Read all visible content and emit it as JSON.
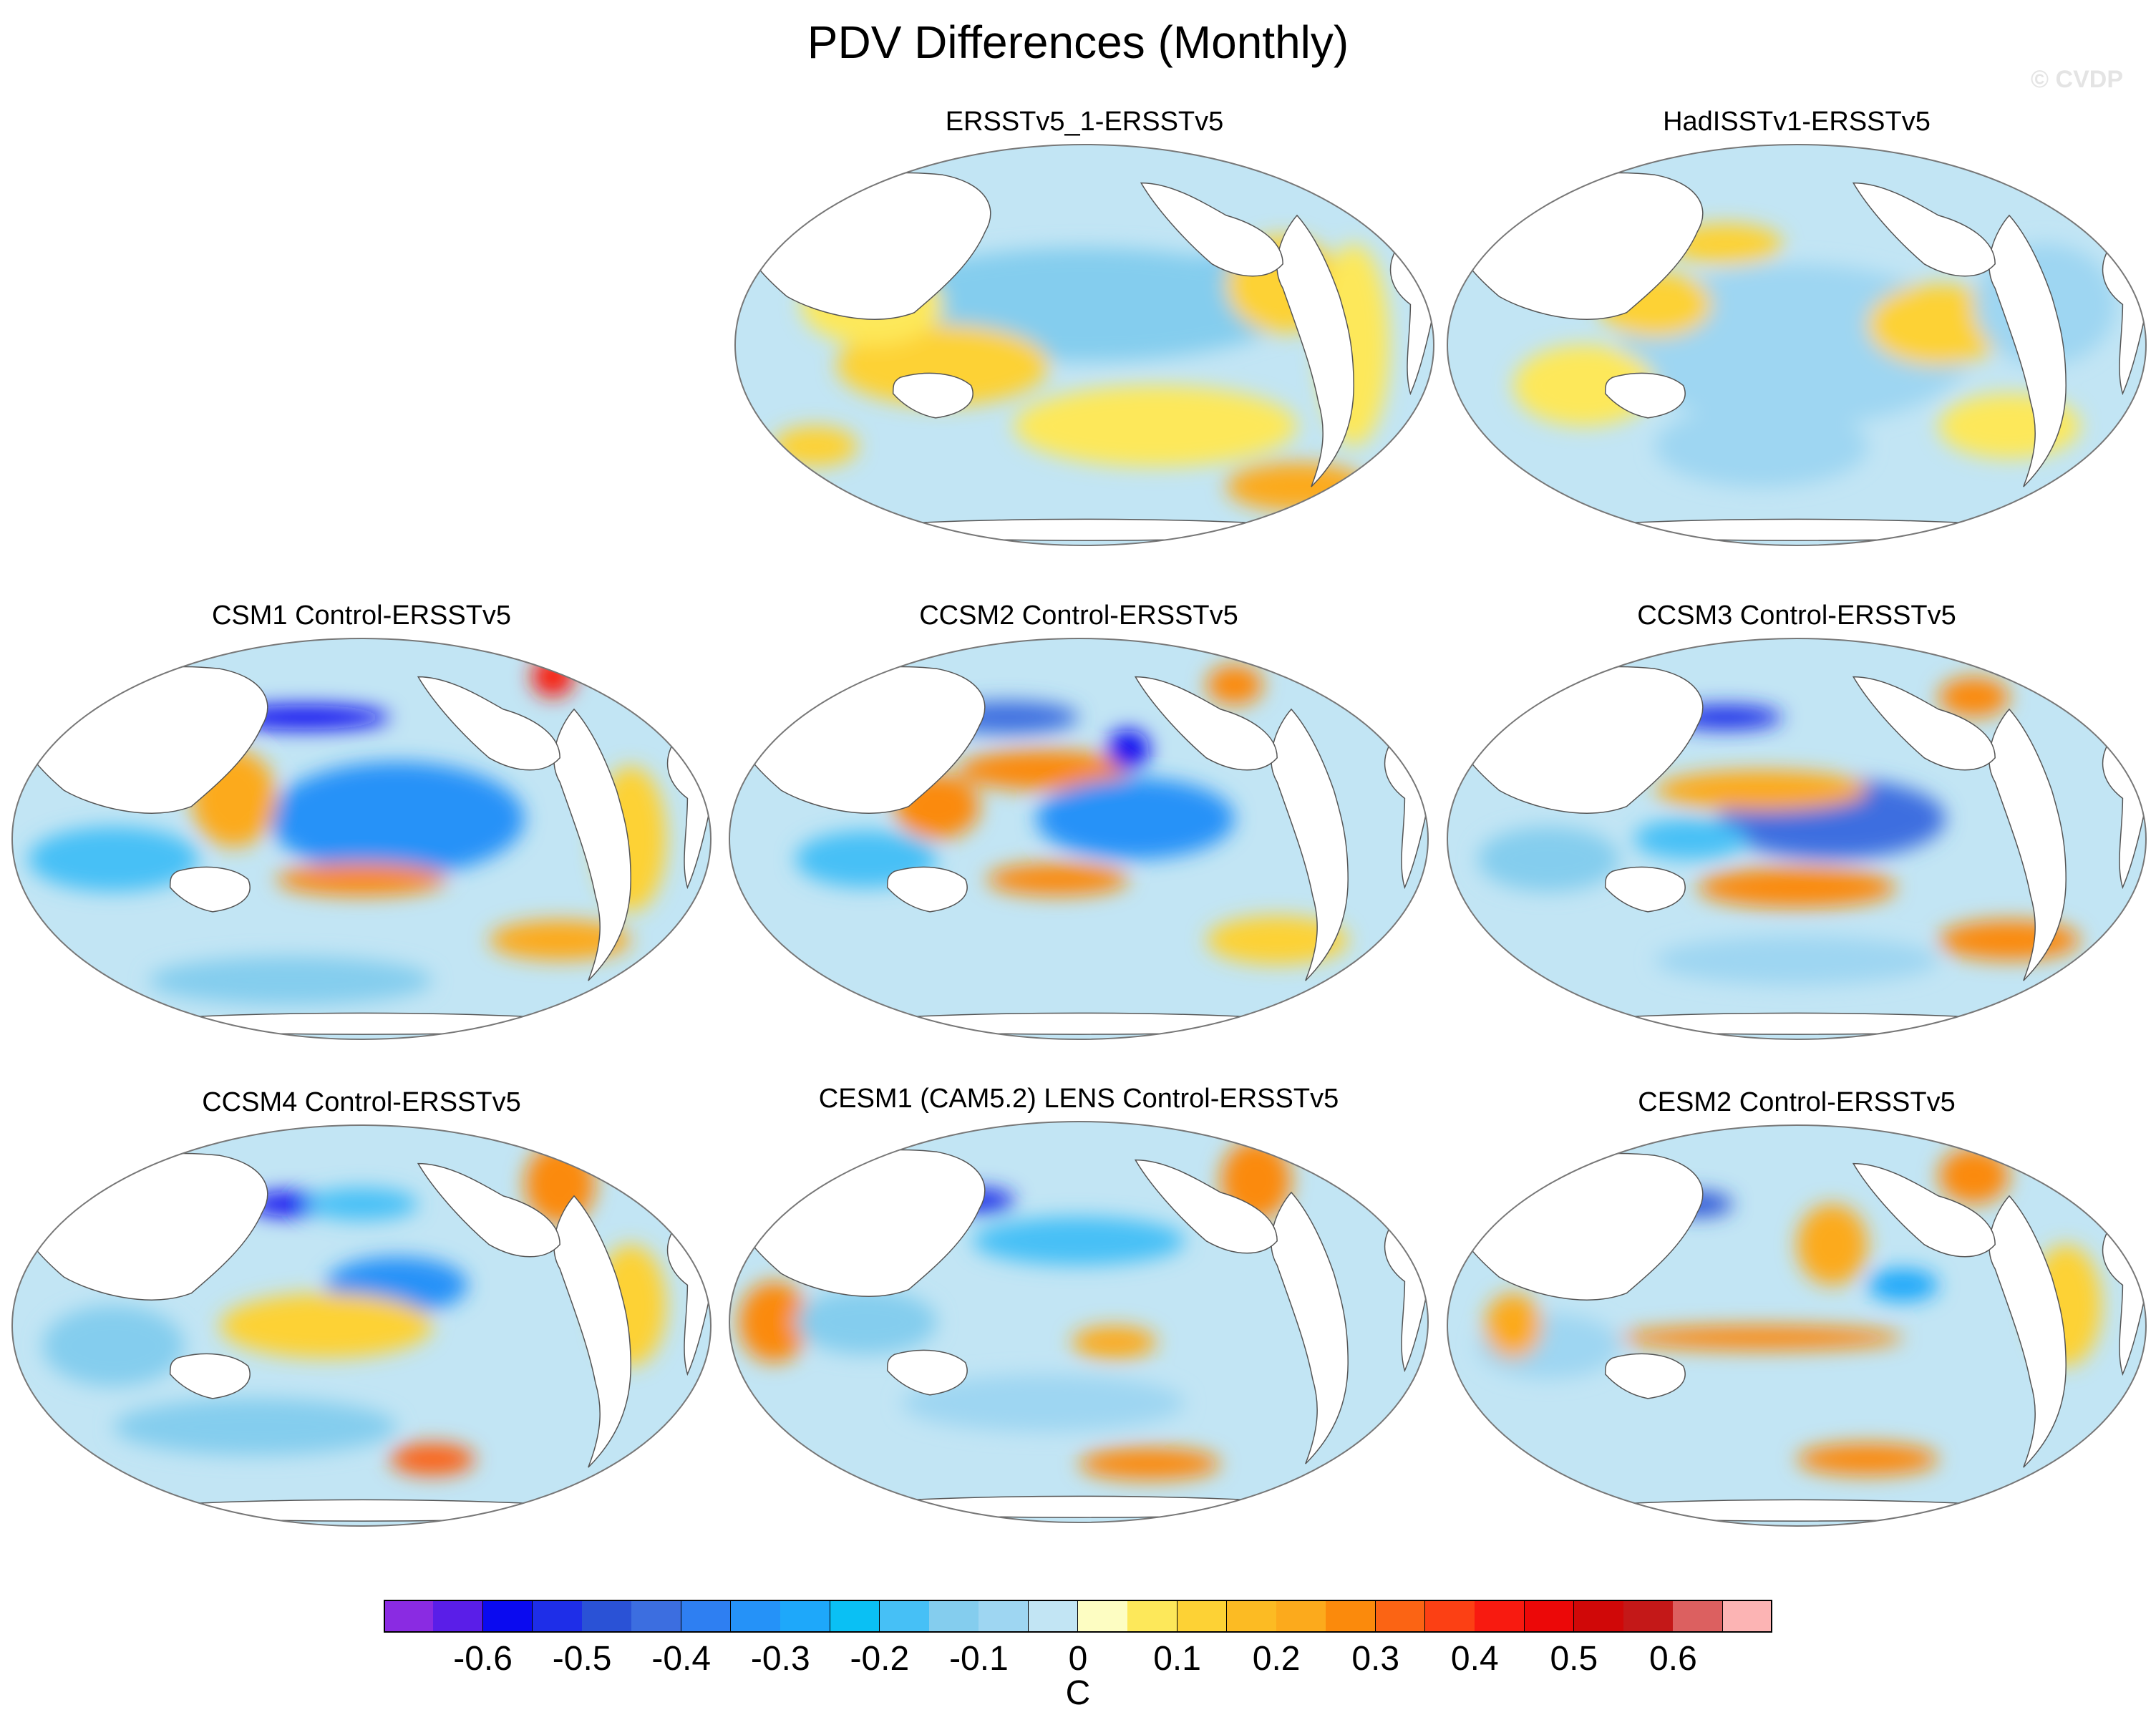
{
  "title": "PDV Differences (Monthly)",
  "watermark": "© CVDP",
  "panels": [
    {
      "id": "ersst1",
      "title": "ERSSTv5_1-ERSSTv5",
      "blobs": [
        [
          0.62,
          0.33,
          0.2,
          0.05,
          -0.3
        ],
        [
          0.5,
          0.4,
          0.3,
          0.14,
          -0.15
        ],
        [
          0.78,
          0.35,
          0.08,
          0.12,
          0.15
        ],
        [
          0.3,
          0.55,
          0.15,
          0.1,
          0.1
        ],
        [
          0.8,
          0.85,
          0.1,
          0.06,
          0.2
        ],
        [
          0.12,
          0.75,
          0.06,
          0.05,
          0.15
        ],
        [
          0.6,
          0.7,
          0.2,
          0.1,
          0.05
        ],
        [
          0.2,
          0.4,
          0.1,
          0.1,
          0.08
        ],
        [
          0.88,
          0.5,
          0.05,
          0.25,
          0.08
        ]
      ]
    },
    {
      "id": "hadisst",
      "title": "HadISSTv1-ERSSTv5",
      "blobs": [
        [
          0.4,
          0.25,
          0.08,
          0.05,
          0.15
        ],
        [
          0.5,
          0.5,
          0.25,
          0.2,
          -0.1
        ],
        [
          0.7,
          0.45,
          0.1,
          0.1,
          0.1
        ],
        [
          0.2,
          0.6,
          0.1,
          0.1,
          0.08
        ],
        [
          0.85,
          0.4,
          0.1,
          0.15,
          -0.08
        ],
        [
          0.45,
          0.75,
          0.15,
          0.1,
          -0.1
        ],
        [
          0.3,
          0.4,
          0.08,
          0.08,
          0.1
        ],
        [
          0.8,
          0.7,
          0.1,
          0.08,
          0.08
        ]
      ]
    },
    {
      "id": "csm1",
      "title": "CSM1 Control-ERSSTv5",
      "blobs": [
        [
          0.42,
          0.2,
          0.12,
          0.03,
          -0.6
        ],
        [
          0.55,
          0.45,
          0.18,
          0.14,
          -0.35
        ],
        [
          0.32,
          0.4,
          0.06,
          0.12,
          0.2
        ],
        [
          0.5,
          0.6,
          0.12,
          0.04,
          0.3
        ],
        [
          0.78,
          0.75,
          0.1,
          0.05,
          0.2
        ],
        [
          0.77,
          0.1,
          0.03,
          0.05,
          0.4
        ],
        [
          0.15,
          0.55,
          0.12,
          0.08,
          -0.2
        ],
        [
          0.4,
          0.85,
          0.2,
          0.06,
          -0.15
        ],
        [
          0.88,
          0.5,
          0.05,
          0.18,
          0.1
        ]
      ]
    },
    {
      "id": "ccsm2",
      "title": "CCSM2 Control-ERSSTv5",
      "blobs": [
        [
          0.4,
          0.2,
          0.1,
          0.04,
          -0.45
        ],
        [
          0.45,
          0.33,
          0.12,
          0.05,
          0.3
        ],
        [
          0.58,
          0.45,
          0.14,
          0.1,
          -0.35
        ],
        [
          0.57,
          0.28,
          0.03,
          0.05,
          -0.6
        ],
        [
          0.47,
          0.6,
          0.1,
          0.04,
          0.3
        ],
        [
          0.2,
          0.55,
          0.1,
          0.07,
          -0.2
        ],
        [
          0.78,
          0.75,
          0.1,
          0.06,
          0.15
        ],
        [
          0.72,
          0.12,
          0.04,
          0.05,
          0.3
        ],
        [
          0.3,
          0.42,
          0.06,
          0.08,
          0.25
        ]
      ]
    },
    {
      "id": "ccsm3",
      "title": "CCSM3 Control-ERSSTv5",
      "blobs": [
        [
          0.4,
          0.2,
          0.08,
          0.03,
          -0.55
        ],
        [
          0.55,
          0.45,
          0.16,
          0.1,
          -0.45
        ],
        [
          0.45,
          0.38,
          0.15,
          0.05,
          0.2
        ],
        [
          0.5,
          0.62,
          0.14,
          0.05,
          0.3
        ],
        [
          0.8,
          0.75,
          0.1,
          0.05,
          0.25
        ],
        [
          0.75,
          0.15,
          0.05,
          0.05,
          0.25
        ],
        [
          0.15,
          0.55,
          0.1,
          0.08,
          -0.15
        ],
        [
          0.35,
          0.5,
          0.08,
          0.05,
          -0.2
        ],
        [
          0.5,
          0.8,
          0.2,
          0.06,
          -0.1
        ]
      ]
    },
    {
      "id": "ccsm4",
      "title": "CCSM4 Control-ERSSTv5",
      "blobs": [
        [
          0.4,
          0.2,
          0.06,
          0.03,
          -0.6
        ],
        [
          0.5,
          0.2,
          0.08,
          0.04,
          -0.2
        ],
        [
          0.55,
          0.4,
          0.1,
          0.07,
          -0.35
        ],
        [
          0.6,
          0.83,
          0.06,
          0.04,
          0.35
        ],
        [
          0.78,
          0.15,
          0.05,
          0.1,
          0.25
        ],
        [
          0.15,
          0.55,
          0.1,
          0.1,
          -0.15
        ],
        [
          0.45,
          0.5,
          0.15,
          0.08,
          0.1
        ],
        [
          0.35,
          0.75,
          0.2,
          0.07,
          -0.15
        ],
        [
          0.88,
          0.45,
          0.05,
          0.15,
          0.1
        ]
      ]
    },
    {
      "id": "cesm1",
      "title": "CESM1 (CAM5.2) LENS Control-ERSSTv5",
      "blobs": [
        [
          0.36,
          0.2,
          0.05,
          0.03,
          -0.55
        ],
        [
          0.5,
          0.3,
          0.15,
          0.06,
          -0.2
        ],
        [
          0.07,
          0.5,
          0.05,
          0.1,
          0.3
        ],
        [
          0.55,
          0.55,
          0.06,
          0.04,
          0.2
        ],
        [
          0.6,
          0.85,
          0.1,
          0.04,
          0.3
        ],
        [
          0.75,
          0.15,
          0.05,
          0.1,
          0.25
        ],
        [
          0.2,
          0.5,
          0.1,
          0.08,
          -0.15
        ],
        [
          0.45,
          0.7,
          0.2,
          0.07,
          -0.1
        ]
      ]
    },
    {
      "id": "cesm2",
      "title": "CESM2 Control-ERSSTv5",
      "blobs": [
        [
          0.36,
          0.2,
          0.05,
          0.03,
          -0.5
        ],
        [
          0.45,
          0.53,
          0.2,
          0.03,
          0.3
        ],
        [
          0.55,
          0.3,
          0.05,
          0.1,
          0.2
        ],
        [
          0.75,
          0.13,
          0.05,
          0.07,
          0.3
        ],
        [
          0.6,
          0.83,
          0.1,
          0.04,
          0.25
        ],
        [
          0.65,
          0.4,
          0.05,
          0.04,
          -0.3
        ],
        [
          0.15,
          0.55,
          0.1,
          0.08,
          -0.1
        ],
        [
          0.88,
          0.45,
          0.05,
          0.15,
          0.1
        ],
        [
          0.1,
          0.5,
          0.04,
          0.08,
          0.2
        ]
      ]
    }
  ],
  "colorbar": {
    "colors": [
      "#8a2be2",
      "#5a1ee8",
      "#0a0af0",
      "#1e2ee8",
      "#2a52d6",
      "#3c6ee0",
      "#2e7ff2",
      "#2592f8",
      "#1ea8fa",
      "#0ac0f4",
      "#46c0f6",
      "#84cdee",
      "#9ed6f2",
      "#c2e5f4",
      "#fdfdc2",
      "#fde85a",
      "#fdd235",
      "#fcbb23",
      "#fcaa1c",
      "#fb8a0c",
      "#fb6414",
      "#fc4014",
      "#f81a10",
      "#ec0808",
      "#d00808",
      "#c41818",
      "#dc6060",
      "#fcb4b4"
    ],
    "labels": [
      "-0.6",
      "-0.5",
      "-0.4",
      "-0.3",
      "-0.2",
      "-0.1",
      "0",
      "0.1",
      "0.2",
      "0.3",
      "0.4",
      "0.5",
      "0.6"
    ],
    "unit": "C"
  }
}
